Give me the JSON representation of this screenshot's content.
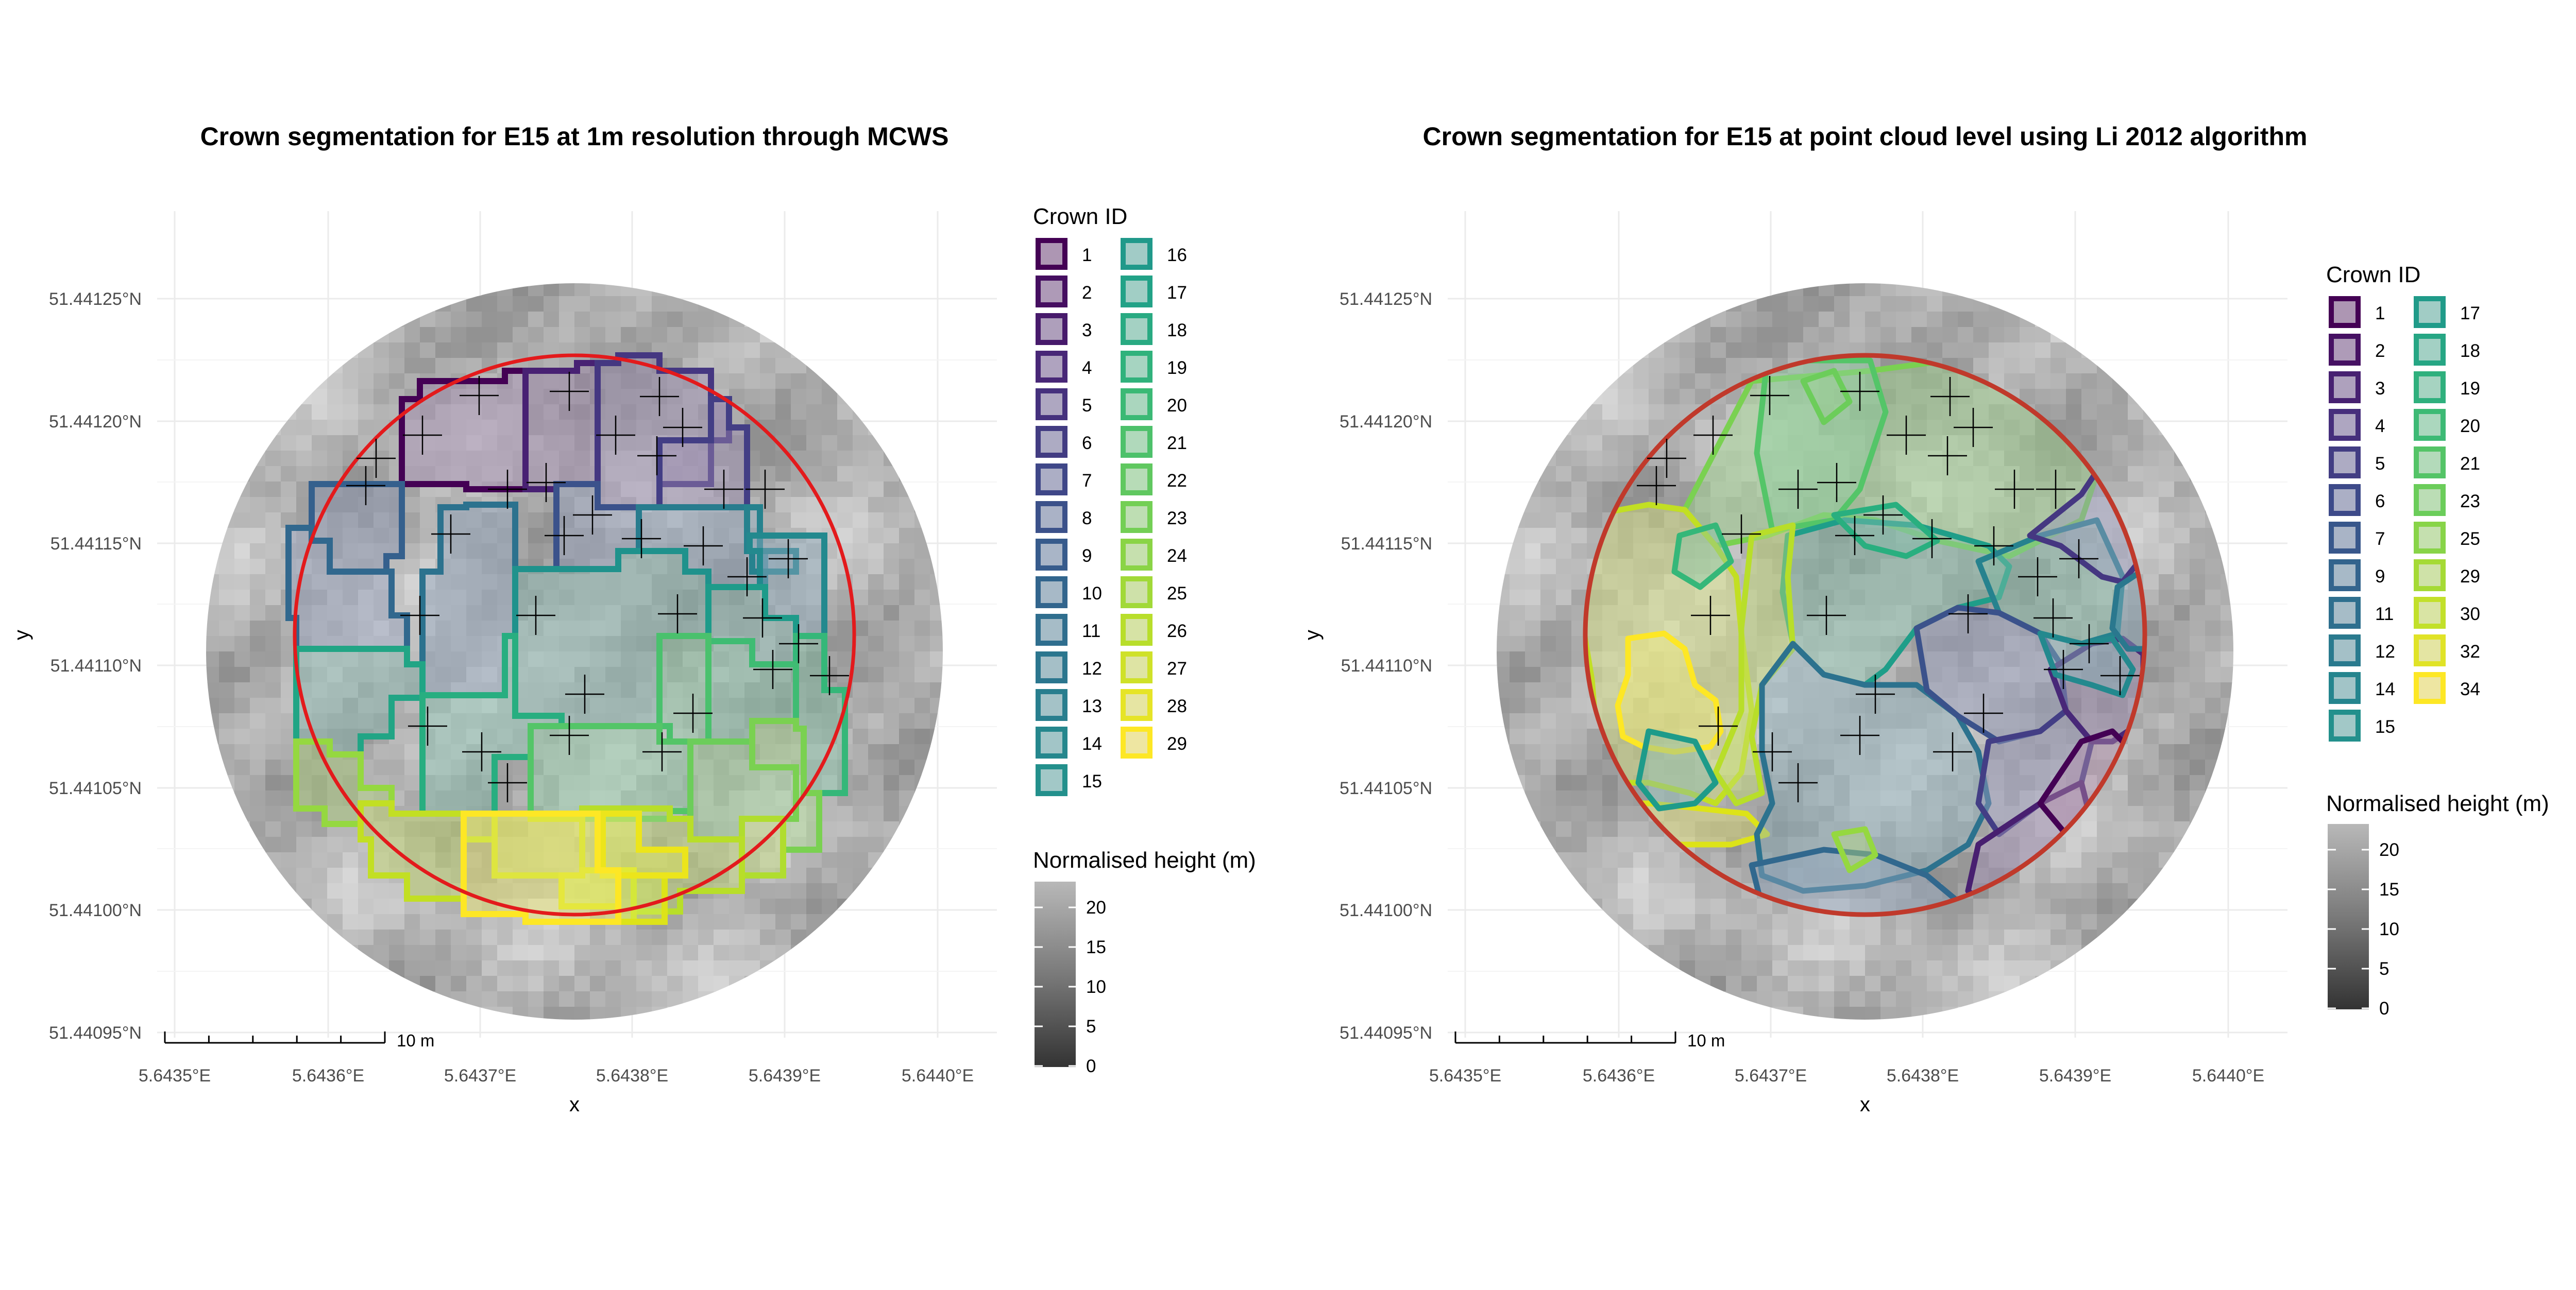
{
  "figure": {
    "panels": [
      {
        "title": "Crown segmentation for E15 at 1m resolution through MCWS",
        "x_axis_label": "x",
        "y_axis_label": "y",
        "x_ticks": [
          "5.6435°E",
          "5.6436°E",
          "5.6437°E",
          "5.6438°E",
          "5.6439°E",
          "5.6440°E"
        ],
        "y_ticks": [
          "51.44125°N",
          "51.44120°N",
          "51.44115°N",
          "51.44110°N",
          "51.44105°N",
          "51.44100°N",
          "51.44095°N"
        ],
        "scale_bar_label": "10 m",
        "legend_crown_title": "Crown ID",
        "crown_ids": [
          "1",
          "2",
          "3",
          "4",
          "5",
          "6",
          "7",
          "8",
          "9",
          "10",
          "11",
          "12",
          "13",
          "14",
          "15",
          "16",
          "17",
          "18",
          "19",
          "20",
          "21",
          "22",
          "23",
          "24",
          "25",
          "26",
          "27",
          "28",
          "29"
        ],
        "legend_height_title": "Normalised height (m)",
        "height_ticks": [
          "20",
          "15",
          "10",
          "5",
          "0"
        ]
      },
      {
        "title": "Crown segmentation for E15 at point cloud level using Li 2012 algorithm",
        "x_axis_label": "x",
        "y_axis_label": "y",
        "x_ticks": [
          "5.6435°E",
          "5.6436°E",
          "5.6437°E",
          "5.6438°E",
          "5.6439°E",
          "5.6440°E"
        ],
        "y_ticks": [
          "51.44125°N",
          "51.44120°N",
          "51.44115°N",
          "51.44110°N",
          "51.44105°N",
          "51.44100°N",
          "51.44095°N"
        ],
        "scale_bar_label": "10 m",
        "legend_crown_title": "Crown ID",
        "crown_ids": [
          "1",
          "2",
          "3",
          "4",
          "5",
          "6",
          "7",
          "9",
          "11",
          "12",
          "14",
          "15",
          "17",
          "18",
          "19",
          "20",
          "21",
          "23",
          "25",
          "29",
          "30",
          "32",
          "34"
        ],
        "legend_height_title": "Normalised height (m)",
        "height_ticks": [
          "20",
          "15",
          "10",
          "5",
          "0"
        ]
      }
    ]
  },
  "colors": {
    "plot_boundary": "#e31a1c",
    "viridis_start": "#440154",
    "viridis_end": "#fde725",
    "raster_high": "#b3b3b3",
    "raster_low": "#333333"
  },
  "icons": {
    "tree_top_marker": "plus-cross"
  }
}
